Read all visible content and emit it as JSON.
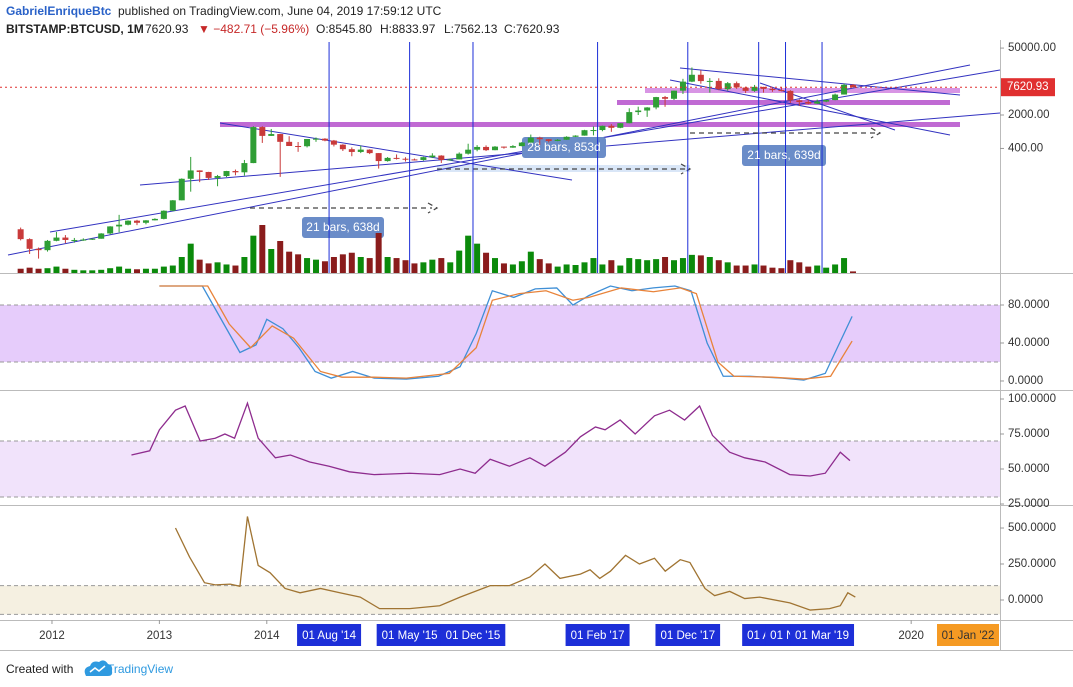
{
  "header": {
    "author": "GabrielEnriqueBtc",
    "published": "published on TradingView.com, June 04, 2019 17:59:12 UTC",
    "symbol": "BITSTAMP:BTCUSD, 1M",
    "price": "7620.93",
    "change": "▼ −482.71 (−5.96%)",
    "open": "O:8545.80",
    "high": "H:8833.97",
    "low": "L:7562.13",
    "close": "C:7620.93"
  },
  "footer": {
    "created": "Created with",
    "brand": "TradingView"
  },
  "chart_data": [
    {
      "type": "candlestick",
      "log_scale": true,
      "up_color": "#2f9e35",
      "down_color": "#c93a3a",
      "volume_up_color": "#0b8a0b",
      "volume_down_color": "#8a1c1c",
      "last_color": "#e03030",
      "ylim": [
        1,
        67000
      ],
      "yticks": [
        {
          "value": 50000,
          "label": "50000.00"
        },
        {
          "value": 2000,
          "label": "2000.00"
        },
        {
          "value": 400,
          "label": "400.00"
        }
      ],
      "last_label": "7620.93",
      "xlim": [
        2011.516,
        2020.827
      ],
      "xticks": [
        2012,
        2013,
        2014,
        2020
      ],
      "date_markers": [
        {
          "value": 2014.58,
          "label": "01 Aug '14"
        },
        {
          "value": 2015.33,
          "label": "01 May '15"
        },
        {
          "value": 2015.92,
          "label": "01 Dec '15"
        },
        {
          "value": 2017.08,
          "label": "01 Feb '17"
        },
        {
          "value": 2017.92,
          "label": "01 Dec '17"
        },
        {
          "value": 2018.58,
          "label": "01 A"
        },
        {
          "value": 2018.83,
          "label": "01 No"
        },
        {
          "value": 2019.17,
          "label": "01 Mar '19"
        }
      ],
      "marker_color": "#1d2fd8",
      "right_label": "01 Jan '22",
      "annotations": [
        "28 bars, 853d",
        "21 bars, 638d",
        "21 bars, 639d"
      ],
      "x": [
        "2011-09",
        "2011-10",
        "2011-11",
        "2011-12",
        "2012-01",
        "2012-02",
        "2012-03",
        "2012-04",
        "2012-05",
        "2012-06",
        "2012-07",
        "2012-08",
        "2012-09",
        "2012-10",
        "2012-11",
        "2012-12",
        "2013-01",
        "2013-02",
        "2013-03",
        "2013-04",
        "2013-05",
        "2013-06",
        "2013-07",
        "2013-08",
        "2013-09",
        "2013-10",
        "2013-11",
        "2013-12",
        "2014-01",
        "2014-02",
        "2014-03",
        "2014-04",
        "2014-05",
        "2014-06",
        "2014-07",
        "2014-08",
        "2014-09",
        "2014-10",
        "2014-11",
        "2014-12",
        "2015-01",
        "2015-02",
        "2015-03",
        "2015-04",
        "2015-05",
        "2015-06",
        "2015-07",
        "2015-08",
        "2015-09",
        "2015-10",
        "2015-11",
        "2015-12",
        "2016-01",
        "2016-02",
        "2016-03",
        "2016-04",
        "2016-05",
        "2016-06",
        "2016-07",
        "2016-08",
        "2016-09",
        "2016-10",
        "2016-11",
        "2016-12",
        "2017-01",
        "2017-02",
        "2017-03",
        "2017-04",
        "2017-05",
        "2017-06",
        "2017-07",
        "2017-08",
        "2017-09",
        "2017-10",
        "2017-11",
        "2017-12",
        "2018-01",
        "2018-02",
        "2018-03",
        "2018-04",
        "2018-05",
        "2018-06",
        "2018-07",
        "2018-08",
        "2018-09",
        "2018-10",
        "2018-11",
        "2018-12",
        "2019-01",
        "2019-02",
        "2019-03",
        "2019-04",
        "2019-05",
        "2019-06"
      ],
      "open": [
        8.2,
        5.1,
        3.2,
        3.0,
        4.7,
        5.5,
        4.9,
        4.9,
        5.0,
        5.2,
        6.7,
        9.4,
        10.2,
        12.4,
        11.2,
        12.6,
        13.5,
        20.0,
        33.0,
        93,
        139,
        129,
        97,
        106,
        135,
        127,
        198,
        1120,
        732,
        800,
        550,
        450,
        445,
        630,
        640,
        585,
        480,
        386,
        338,
        378,
        320,
        218,
        254,
        244,
        236,
        230,
        263,
        284,
        230,
        236,
        311,
        377,
        430,
        368,
        437,
        416,
        448,
        531,
        673,
        624,
        573,
        608,
        701,
        742,
        963,
        970,
        1190,
        1080,
        1348,
        2300,
        2480,
        2875,
        4735,
        4360,
        6440,
        9950,
        13850,
        10220,
        10310,
        6930,
        9240,
        7500,
        6390,
        7730,
        7030,
        6630,
        6370,
        4040,
        3740,
        3460,
        3820,
        4100,
        5350,
        8545.8
      ],
      "high": [
        8.9,
        5.3,
        3.4,
        4.9,
        7.2,
        6.2,
        5.4,
        5.3,
        5.2,
        6.8,
        9.5,
        16.4,
        12.6,
        12.9,
        12.7,
        13.9,
        20.4,
        33.4,
        95,
        266,
        140,
        130,
        112,
        136,
        145,
        230,
        1163,
        1165,
        1022,
        804,
        720,
        545,
        630,
        680,
        656,
        602,
        490,
        420,
        458,
        385,
        320,
        265,
        300,
        262,
        246,
        268,
        317,
        289,
        247,
        331,
        502,
        469,
        464,
        448,
        440,
        469,
        545,
        780,
        704,
        627,
        630,
        720,
        755,
        980,
        1155,
        1200,
        1290,
        1350,
        2765,
        2980,
        2920,
        4780,
        5000,
        6470,
        11400,
        19670,
        17200,
        11790,
        11700,
        9770,
        10000,
        7780,
        8500,
        7760,
        7410,
        7680,
        6590,
        4240,
        4090,
        4200,
        4140,
        5600,
        9100,
        8833.97
      ],
      "low": [
        4.8,
        2.5,
        2.0,
        2.8,
        4.6,
        4.2,
        4.3,
        4.7,
        4.9,
        5.2,
        6.4,
        7.1,
        9.9,
        10.0,
        10.4,
        12.5,
        13.2,
        19.5,
        33.0,
        50,
        79,
        88,
        65,
        101,
        110,
        108,
        197,
        522,
        731,
        102,
        450,
        340,
        420,
        550,
        565,
        440,
        354,
        275,
        320,
        305,
        152,
        212,
        235,
        213,
        225,
        222,
        252,
        199,
        224,
        236,
        298,
        349,
        353,
        367,
        396,
        412,
        443,
        527,
        471,
        535,
        567,
        605,
        690,
        740,
        750,
        915,
        890,
        1060,
        1340,
        2000,
        1830,
        2630,
        2970,
        4110,
        5500,
        9720,
        9000,
        5870,
        6580,
        6440,
        7030,
        5750,
        6080,
        5880,
        6100,
        6210,
        3560,
        3120,
        3350,
        3390,
        3700,
        4060,
        5340,
        7562.13
      ],
      "close": [
        5.1,
        3.2,
        3.0,
        4.7,
        5.5,
        4.9,
        4.9,
        5.0,
        5.2,
        6.7,
        9.4,
        10.2,
        12.4,
        11.2,
        12.6,
        13.5,
        20.0,
        33.0,
        93,
        139,
        129,
        97,
        106,
        135,
        127,
        198,
        1120,
        732,
        800,
        550,
        450,
        445,
        630,
        640,
        585,
        480,
        386,
        338,
        378,
        320,
        218,
        254,
        244,
        236,
        230,
        263,
        284,
        230,
        236,
        311,
        377,
        430,
        368,
        437,
        416,
        448,
        531,
        673,
        624,
        573,
        608,
        701,
        742,
        963,
        970,
        1190,
        1080,
        1348,
        2300,
        2480,
        2875,
        4735,
        4360,
        6440,
        9950,
        13850,
        10220,
        10310,
        6930,
        9240,
        7500,
        6390,
        7730,
        7030,
        6630,
        6370,
        4040,
        3740,
        3460,
        3820,
        4100,
        5350,
        8545.8,
        7620.93
      ],
      "volume": [
        8,
        10,
        8,
        9,
        12,
        8,
        6,
        5,
        5,
        6,
        9,
        12,
        8,
        7,
        8,
        8,
        12,
        14,
        30,
        55,
        25,
        18,
        20,
        16,
        14,
        30,
        70,
        90,
        45,
        60,
        40,
        35,
        28,
        25,
        22,
        30,
        35,
        38,
        30,
        28,
        75,
        30,
        28,
        24,
        18,
        20,
        25,
        28,
        20,
        42,
        70,
        55,
        38,
        28,
        18,
        16,
        22,
        40,
        26,
        18,
        12,
        16,
        15,
        20,
        28,
        16,
        24,
        14,
        28,
        26,
        24,
        26,
        30,
        24,
        28,
        34,
        33,
        30,
        24,
        20,
        14,
        14,
        16,
        14,
        10,
        9,
        24,
        20,
        12,
        14,
        10,
        16,
        28,
        3
      ]
    },
    {
      "type": "line",
      "ylim": [
        -9.5,
        111.6
      ],
      "yticks": [
        {
          "value": 0,
          "label": "0.0000"
        },
        {
          "value": 40,
          "label": "40.0000"
        },
        {
          "value": 80,
          "label": "80.0000"
        }
      ],
      "band": [
        20,
        80
      ],
      "band_color": "#e6ccfb",
      "series": [
        {
          "color": "#3f8fd6",
          "x": [
            2013.0,
            2013.4,
            2013.55,
            2013.75,
            2013.9,
            2014.0,
            2014.15,
            2014.3,
            2014.45,
            2014.6,
            2014.8,
            2015.0,
            2015.3,
            2015.6,
            2015.8,
            2015.95,
            2016.1,
            2016.3,
            2016.5,
            2016.7,
            2016.85,
            2017.0,
            2017.2,
            2017.4,
            2017.6,
            2017.8,
            2017.95,
            2018.1,
            2018.25,
            2018.5,
            2018.8,
            2019.0,
            2019.2,
            2019.45
          ],
          "values": [
            100,
            100,
            70,
            30,
            38,
            65,
            55,
            35,
            10,
            3,
            10,
            3,
            2,
            5,
            15,
            50,
            95,
            88,
            97,
            98,
            80,
            90,
            100,
            95,
            98,
            100,
            95,
            40,
            5,
            5,
            3,
            1,
            8,
            68
          ]
        },
        {
          "color": "#e8833a",
          "x": [
            2013.0,
            2013.45,
            2013.65,
            2013.85,
            2014.05,
            2014.25,
            2014.5,
            2014.7,
            2015.0,
            2015.3,
            2015.7,
            2015.95,
            2016.1,
            2016.35,
            2016.6,
            2016.85,
            2017.0,
            2017.3,
            2017.6,
            2017.85,
            2018.0,
            2018.2,
            2018.35,
            2018.7,
            2019.0,
            2019.25,
            2019.45
          ],
          "values": [
            100,
            100,
            60,
            35,
            58,
            45,
            10,
            4,
            4,
            3,
            8,
            35,
            85,
            92,
            95,
            85,
            88,
            98,
            94,
            98,
            92,
            20,
            5,
            4,
            2,
            5,
            42
          ]
        }
      ]
    },
    {
      "type": "line",
      "ylim": [
        24.3,
        105
      ],
      "yticks": [
        {
          "value": 25,
          "label": "25.0000"
        },
        {
          "value": 50,
          "label": "50.0000"
        },
        {
          "value": 75,
          "label": "75.0000"
        },
        {
          "value": 100,
          "label": "100.0000"
        }
      ],
      "band": [
        30,
        70
      ],
      "band_color": "#f1e3fb",
      "series": [
        {
          "color": "#8e2c8e",
          "x": [
            2012.74,
            2012.91,
            2013.0,
            2013.15,
            2013.24,
            2013.38,
            2013.52,
            2013.61,
            2013.7,
            2013.82,
            2013.92,
            2014.08,
            2014.22,
            2014.4,
            2014.58,
            2014.77,
            2015.0,
            2015.33,
            2015.61,
            2015.8,
            2015.94,
            2016.08,
            2016.26,
            2016.45,
            2016.59,
            2016.78,
            2016.92,
            2017.06,
            2017.15,
            2017.29,
            2017.43,
            2017.61,
            2017.75,
            2017.89,
            2018.03,
            2018.15,
            2018.31,
            2018.45,
            2018.64,
            2018.87,
            2019.06,
            2019.2,
            2019.34,
            2019.43
          ],
          "values": [
            60,
            63,
            78,
            92,
            95,
            70,
            72,
            75,
            72,
            97,
            72,
            58,
            60,
            55,
            52,
            48,
            46,
            47,
            46,
            50,
            47,
            57,
            52,
            58,
            52,
            62,
            73,
            80,
            78,
            85,
            75,
            88,
            92,
            85,
            95,
            74,
            62,
            58,
            55,
            46,
            45,
            47,
            62,
            56
          ]
        }
      ]
    },
    {
      "type": "line",
      "ylim": [
        -139,
        646
      ],
      "yticks": [
        {
          "value": 0,
          "label": "0.0000"
        },
        {
          "value": 250,
          "label": "250.0000"
        },
        {
          "value": 500,
          "label": "500.0000"
        }
      ],
      "band": [
        -100,
        100
      ],
      "band_color": "#f5f0e1",
      "series": [
        {
          "color": "#a07432",
          "x": [
            2013.15,
            2013.28,
            2013.42,
            2013.52,
            2013.66,
            2013.75,
            2013.82,
            2013.92,
            2014.03,
            2014.17,
            2014.31,
            2014.5,
            2014.68,
            2014.87,
            2015.05,
            2015.33,
            2015.61,
            2015.8,
            2016.08,
            2016.26,
            2016.45,
            2016.59,
            2016.73,
            2016.92,
            2017.01,
            2017.1,
            2017.2,
            2017.34,
            2017.47,
            2017.61,
            2017.71,
            2017.85,
            2017.94,
            2018.08,
            2018.17,
            2018.31,
            2018.45,
            2018.59,
            2018.87,
            2019.06,
            2019.24,
            2019.34,
            2019.41,
            2019.48
          ],
          "values": [
            500,
            300,
            120,
            105,
            110,
            95,
            580,
            240,
            190,
            80,
            50,
            80,
            50,
            20,
            -60,
            -60,
            -40,
            20,
            100,
            100,
            160,
            250,
            150,
            180,
            210,
            150,
            200,
            310,
            250,
            290,
            200,
            280,
            260,
            80,
            30,
            60,
            10,
            20,
            -20,
            -70,
            -60,
            -40,
            50,
            20
          ]
        }
      ]
    }
  ]
}
